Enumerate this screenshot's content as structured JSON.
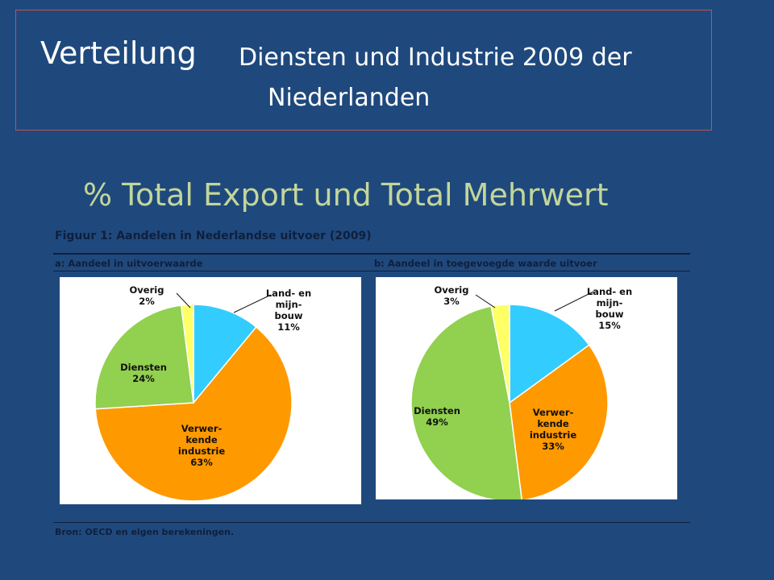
{
  "slide": {
    "title_main": "Verteilung",
    "title_sub1": "Diensten und Industrie 2009 der",
    "title_sub2": "Niederlanden",
    "subtitle": "%  Total Export  und Total Mehrwert"
  },
  "figure": {
    "title": "Figuur 1: Aandelen in Nederlandse uitvoer (2009)",
    "source": "Bron: OECD en eigen berekeningen."
  },
  "colors": {
    "background": "#1f497d",
    "land": "#33ccff",
    "industrie": "#ff9900",
    "diensten": "#92d050",
    "overig": "#ffff66",
    "title_border": "#c0504d",
    "subtitle": "#c3d69b"
  },
  "chart_data": [
    {
      "type": "pie",
      "title": "a: Aandeel in uitvoerwaarde",
      "categories": [
        "Land- en mijnbouw",
        "Verwerkende industrie",
        "Diensten",
        "Overig"
      ],
      "values": [
        11,
        63,
        24,
        2
      ],
      "labels": [
        [
          "Land- en",
          "mijn-",
          "bouw",
          "11%"
        ],
        [
          "Verwer-",
          "kende",
          "industrie",
          "63%"
        ],
        [
          "Diensten",
          "24%"
        ],
        [
          "Overig",
          "2%"
        ]
      ]
    },
    {
      "type": "pie",
      "title": "b: Aandeel in toegevoegde waarde uitvoer",
      "categories": [
        "Land- en mijnbouw",
        "Verwerkende industrie",
        "Diensten",
        "Overig"
      ],
      "values": [
        15,
        33,
        49,
        3
      ],
      "labels": [
        [
          "Land- en",
          "mijn-",
          "bouw",
          "15%"
        ],
        [
          "Verwer-",
          "kende",
          "industrie",
          "33%"
        ],
        [
          "Diensten",
          "49%"
        ],
        [
          "Overig",
          "3%"
        ]
      ]
    }
  ]
}
